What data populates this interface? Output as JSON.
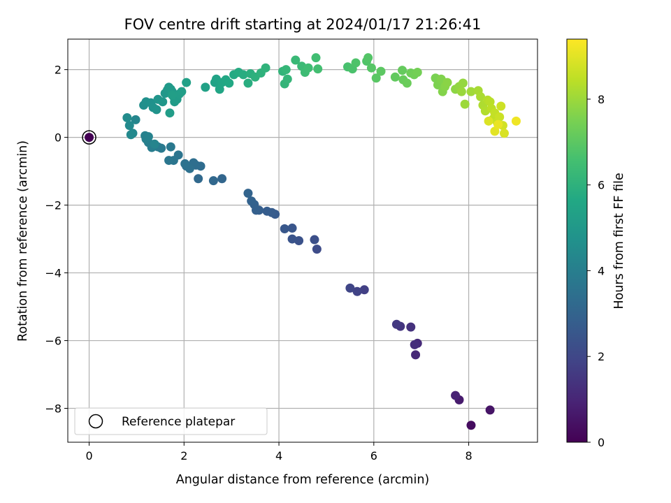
{
  "chart_data": {
    "type": "scatter",
    "title": "FOV centre drift starting at 2024/01/17 21:26:41",
    "xlabel": "Angular distance from reference (arcmin)",
    "ylabel": "Rotation from reference (arcmin)",
    "xlim": [
      -0.45,
      9.45
    ],
    "ylim": [
      -9.0,
      2.9
    ],
    "x_ticks": [
      0,
      2,
      4,
      6,
      8
    ],
    "y_ticks": [
      -8,
      -6,
      -4,
      -2,
      0,
      2
    ],
    "x_tick_labels": [
      "0",
      "2",
      "4",
      "6",
      "8"
    ],
    "y_tick_labels": [
      "−8",
      "−6",
      "−4",
      "−2",
      "0",
      "2"
    ],
    "grid": true,
    "colormap": "viridis",
    "colorbar": {
      "label": "Hours from first FF file",
      "range": [
        0,
        9.4
      ],
      "ticks": [
        0,
        2,
        4,
        6,
        8
      ],
      "tick_labels": [
        "0",
        "2",
        "4",
        "6",
        "8"
      ]
    },
    "legend": {
      "position": "lower-left",
      "entries": [
        {
          "label": "Reference platepar",
          "marker": "open-circle"
        }
      ]
    },
    "reference_point": {
      "x": 0,
      "y": 0,
      "hours": 0.0
    },
    "series": [
      {
        "points": [
          [
            0.0,
            0.0,
            0.0
          ],
          [
            8.05,
            -8.5,
            0.3
          ],
          [
            8.45,
            -8.05,
            0.5
          ],
          [
            7.8,
            -7.75,
            0.7
          ],
          [
            7.72,
            -7.62,
            0.9
          ],
          [
            6.88,
            -6.42,
            1.05
          ],
          [
            6.92,
            -6.08,
            1.15
          ],
          [
            6.86,
            -6.12,
            1.25
          ],
          [
            6.78,
            -5.6,
            1.35
          ],
          [
            6.56,
            -5.58,
            1.45
          ],
          [
            6.48,
            -5.52,
            1.55
          ],
          [
            5.8,
            -4.5,
            1.75
          ],
          [
            5.65,
            -4.55,
            1.85
          ],
          [
            5.5,
            -4.45,
            1.95
          ],
          [
            4.8,
            -3.3,
            2.15
          ],
          [
            4.75,
            -3.02,
            2.25
          ],
          [
            4.42,
            -3.05,
            2.35
          ],
          [
            4.28,
            -3.0,
            2.45
          ],
          [
            4.28,
            -2.68,
            2.5
          ],
          [
            4.12,
            -2.7,
            2.55
          ],
          [
            3.92,
            -2.27,
            2.65
          ],
          [
            3.85,
            -2.22,
            2.7
          ],
          [
            3.75,
            -2.18,
            2.75
          ],
          [
            3.58,
            -2.15,
            2.8
          ],
          [
            3.52,
            -2.15,
            2.85
          ],
          [
            3.48,
            -1.98,
            2.9
          ],
          [
            3.42,
            -1.88,
            2.95
          ],
          [
            3.35,
            -1.65,
            3.0
          ],
          [
            2.8,
            -1.22,
            3.1
          ],
          [
            2.62,
            -1.28,
            3.15
          ],
          [
            2.3,
            -1.22,
            3.2
          ],
          [
            2.35,
            -0.85,
            3.3
          ],
          [
            2.25,
            -0.82,
            3.35
          ],
          [
            2.2,
            -0.75,
            3.4
          ],
          [
            2.12,
            -0.92,
            3.45
          ],
          [
            2.05,
            -0.85,
            3.5
          ],
          [
            2.02,
            -0.78,
            3.55
          ],
          [
            1.88,
            -0.52,
            3.6
          ],
          [
            1.78,
            -0.68,
            3.65
          ],
          [
            1.68,
            -0.68,
            3.7
          ],
          [
            1.72,
            -0.28,
            3.75
          ],
          [
            1.52,
            -0.32,
            3.8
          ],
          [
            1.45,
            -0.28,
            3.85
          ],
          [
            1.38,
            -0.22,
            3.9
          ],
          [
            1.32,
            -0.3,
            3.95
          ],
          [
            1.25,
            -0.15,
            4.0
          ],
          [
            1.2,
            -0.05,
            4.05
          ],
          [
            1.18,
            0.05,
            4.1
          ],
          [
            1.25,
            0.02,
            4.15
          ],
          [
            1.38,
            -0.2,
            4.2
          ],
          [
            0.98,
            0.52,
            4.3
          ],
          [
            0.92,
            0.12,
            4.35
          ],
          [
            0.88,
            0.08,
            4.4
          ],
          [
            0.85,
            0.35,
            4.45
          ],
          [
            0.8,
            0.58,
            4.5
          ],
          [
            1.15,
            0.95,
            4.6
          ],
          [
            1.2,
            1.05,
            4.65
          ],
          [
            1.3,
            1.02,
            4.7
          ],
          [
            1.35,
            0.88,
            4.75
          ],
          [
            1.42,
            0.82,
            4.8
          ],
          [
            1.45,
            1.12,
            4.85
          ],
          [
            1.55,
            1.05,
            4.9
          ],
          [
            1.6,
            1.3,
            4.95
          ],
          [
            1.65,
            1.4,
            5.0
          ],
          [
            1.68,
            1.48,
            5.02
          ],
          [
            1.72,
            1.42,
            5.05
          ],
          [
            1.75,
            1.35,
            5.08
          ],
          [
            1.78,
            1.2,
            5.1
          ],
          [
            1.8,
            1.05,
            5.12
          ],
          [
            1.85,
            1.12,
            5.15
          ],
          [
            1.7,
            0.72,
            5.18
          ],
          [
            1.9,
            1.28,
            5.2
          ],
          [
            1.95,
            1.35,
            5.22
          ],
          [
            1.75,
            1.25,
            5.25
          ],
          [
            2.05,
            1.62,
            5.3
          ],
          [
            2.45,
            1.48,
            5.35
          ],
          [
            2.65,
            1.62,
            5.4
          ],
          [
            2.68,
            1.72,
            5.45
          ],
          [
            2.75,
            1.42,
            5.5
          ],
          [
            2.8,
            1.62,
            5.55
          ],
          [
            2.88,
            1.7,
            5.6
          ],
          [
            2.95,
            1.6,
            5.65
          ],
          [
            3.05,
            1.85,
            5.7
          ],
          [
            3.15,
            1.92,
            5.75
          ],
          [
            3.25,
            1.85,
            5.8
          ],
          [
            3.35,
            1.6,
            5.85
          ],
          [
            3.4,
            1.88,
            5.9
          ],
          [
            3.5,
            1.78,
            5.95
          ],
          [
            3.62,
            1.9,
            6.0
          ],
          [
            3.72,
            2.05,
            6.05
          ],
          [
            4.08,
            1.95,
            6.1
          ],
          [
            4.12,
            1.58,
            6.15
          ],
          [
            4.18,
            1.72,
            6.18
          ],
          [
            4.15,
            2.0,
            6.2
          ],
          [
            4.35,
            2.28,
            6.3
          ],
          [
            4.48,
            2.1,
            6.35
          ],
          [
            4.55,
            1.92,
            6.4
          ],
          [
            4.62,
            2.05,
            6.45
          ],
          [
            4.78,
            2.35,
            6.5
          ],
          [
            4.82,
            2.02,
            6.55
          ],
          [
            5.45,
            2.08,
            6.65
          ],
          [
            5.55,
            2.02,
            6.7
          ],
          [
            5.62,
            2.2,
            6.75
          ],
          [
            5.85,
            2.25,
            6.8
          ],
          [
            5.88,
            2.35,
            6.85
          ],
          [
            5.95,
            2.05,
            6.9
          ],
          [
            6.05,
            1.75,
            6.95
          ],
          [
            6.15,
            1.95,
            7.0
          ],
          [
            6.45,
            1.78,
            7.1
          ],
          [
            6.6,
            1.98,
            7.15
          ],
          [
            6.62,
            1.7,
            7.2
          ],
          [
            6.7,
            1.6,
            7.25
          ],
          [
            6.78,
            1.9,
            7.3
          ],
          [
            6.85,
            1.85,
            7.35
          ],
          [
            6.92,
            1.92,
            7.4
          ],
          [
            7.3,
            1.75,
            7.5
          ],
          [
            7.35,
            1.55,
            7.55
          ],
          [
            7.42,
            1.72,
            7.6
          ],
          [
            7.45,
            1.35,
            7.65
          ],
          [
            7.5,
            1.5,
            7.7
          ],
          [
            7.55,
            1.62,
            7.75
          ],
          [
            7.72,
            1.42,
            7.8
          ],
          [
            7.8,
            1.5,
            7.85
          ],
          [
            7.88,
            1.6,
            7.9
          ],
          [
            7.85,
            1.35,
            7.95
          ],
          [
            7.92,
            0.98,
            8.0
          ],
          [
            8.05,
            1.35,
            8.05
          ],
          [
            8.2,
            1.38,
            8.15
          ],
          [
            8.25,
            1.2,
            8.2
          ],
          [
            8.3,
            0.95,
            8.25
          ],
          [
            8.35,
            0.78,
            8.3
          ],
          [
            8.4,
            1.1,
            8.35
          ],
          [
            8.45,
            1.05,
            8.4
          ],
          [
            8.48,
            0.85,
            8.45
          ],
          [
            8.52,
            0.55,
            8.5
          ],
          [
            8.55,
            0.72,
            8.55
          ],
          [
            8.6,
            0.45,
            8.6
          ],
          [
            8.65,
            0.6,
            8.65
          ],
          [
            8.68,
            0.92,
            8.7
          ],
          [
            8.72,
            0.35,
            8.75
          ],
          [
            8.75,
            0.12,
            8.85
          ],
          [
            8.42,
            0.48,
            8.9
          ],
          [
            8.55,
            0.18,
            9.0
          ],
          [
            8.62,
            0.38,
            9.1
          ],
          [
            9.0,
            0.48,
            9.2
          ]
        ]
      }
    ]
  }
}
